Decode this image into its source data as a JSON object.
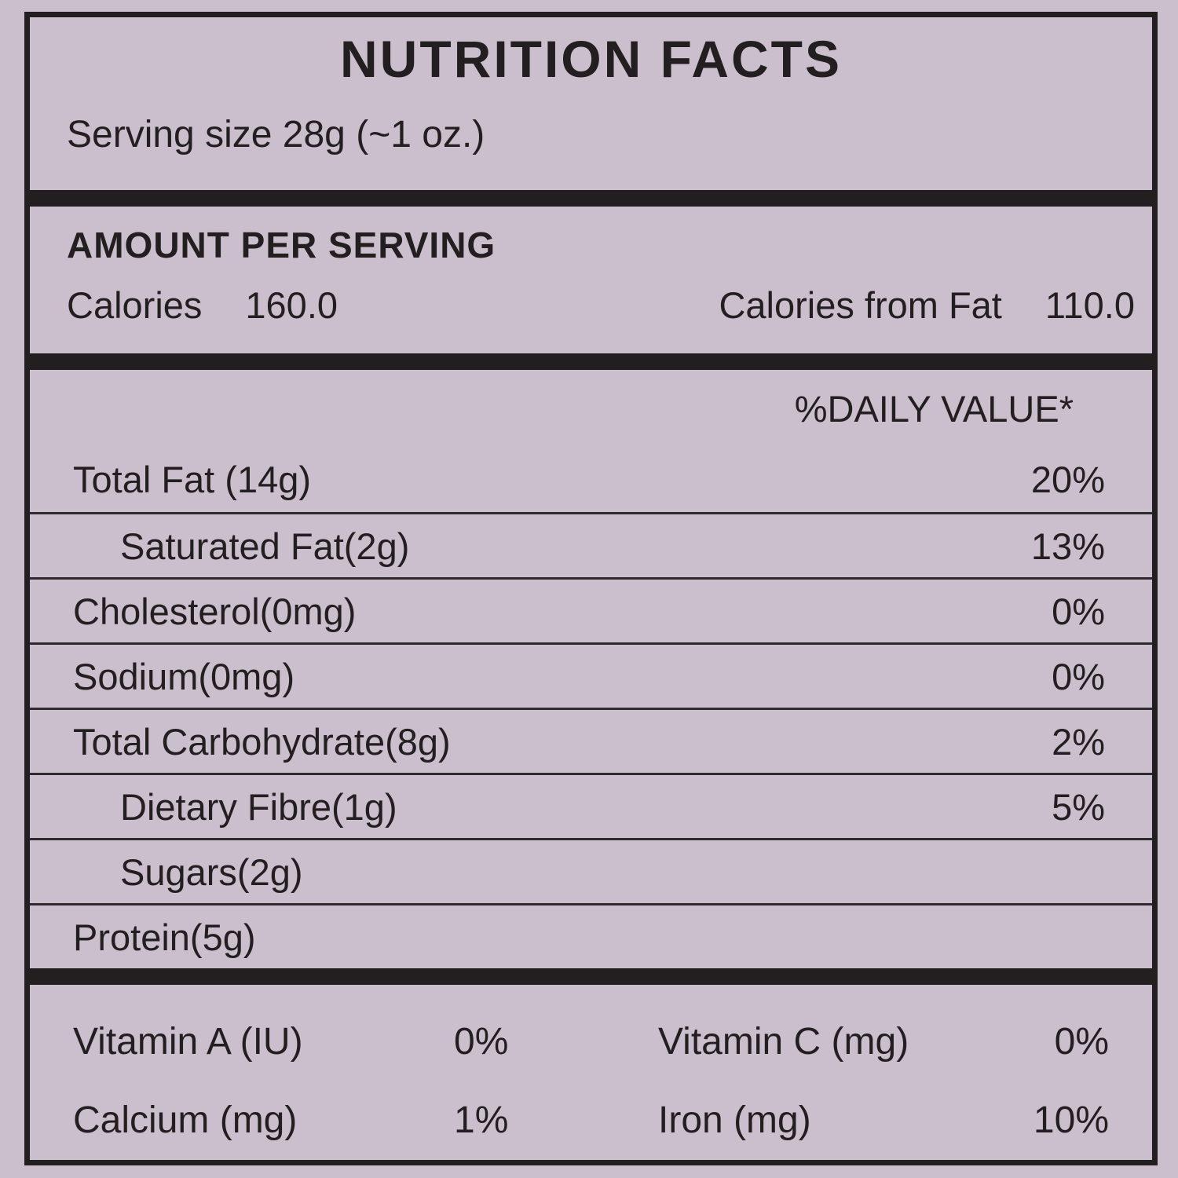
{
  "label": {
    "title": "NUTRITION FACTS",
    "serving_size": "Serving size 28g (~1 oz.)",
    "amount_heading": "AMOUNT PER SERVING",
    "calories": {
      "label": "Calories",
      "value": "160.0"
    },
    "calories_from_fat": {
      "label": "Calories from Fat",
      "value": "110.0"
    },
    "daily_value_heading": "%DAILY VALUE*",
    "nutrients": [
      {
        "label": "Total Fat (14g)",
        "indent": false,
        "percent": "20%"
      },
      {
        "label": "Saturated Fat(2g)",
        "indent": true,
        "percent": "13%"
      },
      {
        "label": "Cholesterol(0mg)",
        "indent": false,
        "percent": "0%"
      },
      {
        "label": "Sodium(0mg)",
        "indent": false,
        "percent": "0%"
      },
      {
        "label": "Total Carbohydrate(8g)",
        "indent": false,
        "percent": "2%"
      },
      {
        "label": "Dietary Fibre(1g)",
        "indent": true,
        "percent": "5%"
      },
      {
        "label": "Sugars(2g)",
        "indent": true,
        "percent": ""
      },
      {
        "label": "Protein(5g)",
        "indent": false,
        "percent": ""
      }
    ],
    "micronutrients": [
      {
        "label": "Vitamin A (IU)",
        "value": "0%"
      },
      {
        "label": "Vitamin C (mg)",
        "value": "0%"
      },
      {
        "label": "Calcium (mg)",
        "value": "1%"
      },
      {
        "label": "Iron (mg)",
        "value": "10%"
      }
    ],
    "colors": {
      "background": "#cbbfce",
      "ink": "#231f20",
      "separator": "#2e2a2e"
    }
  }
}
